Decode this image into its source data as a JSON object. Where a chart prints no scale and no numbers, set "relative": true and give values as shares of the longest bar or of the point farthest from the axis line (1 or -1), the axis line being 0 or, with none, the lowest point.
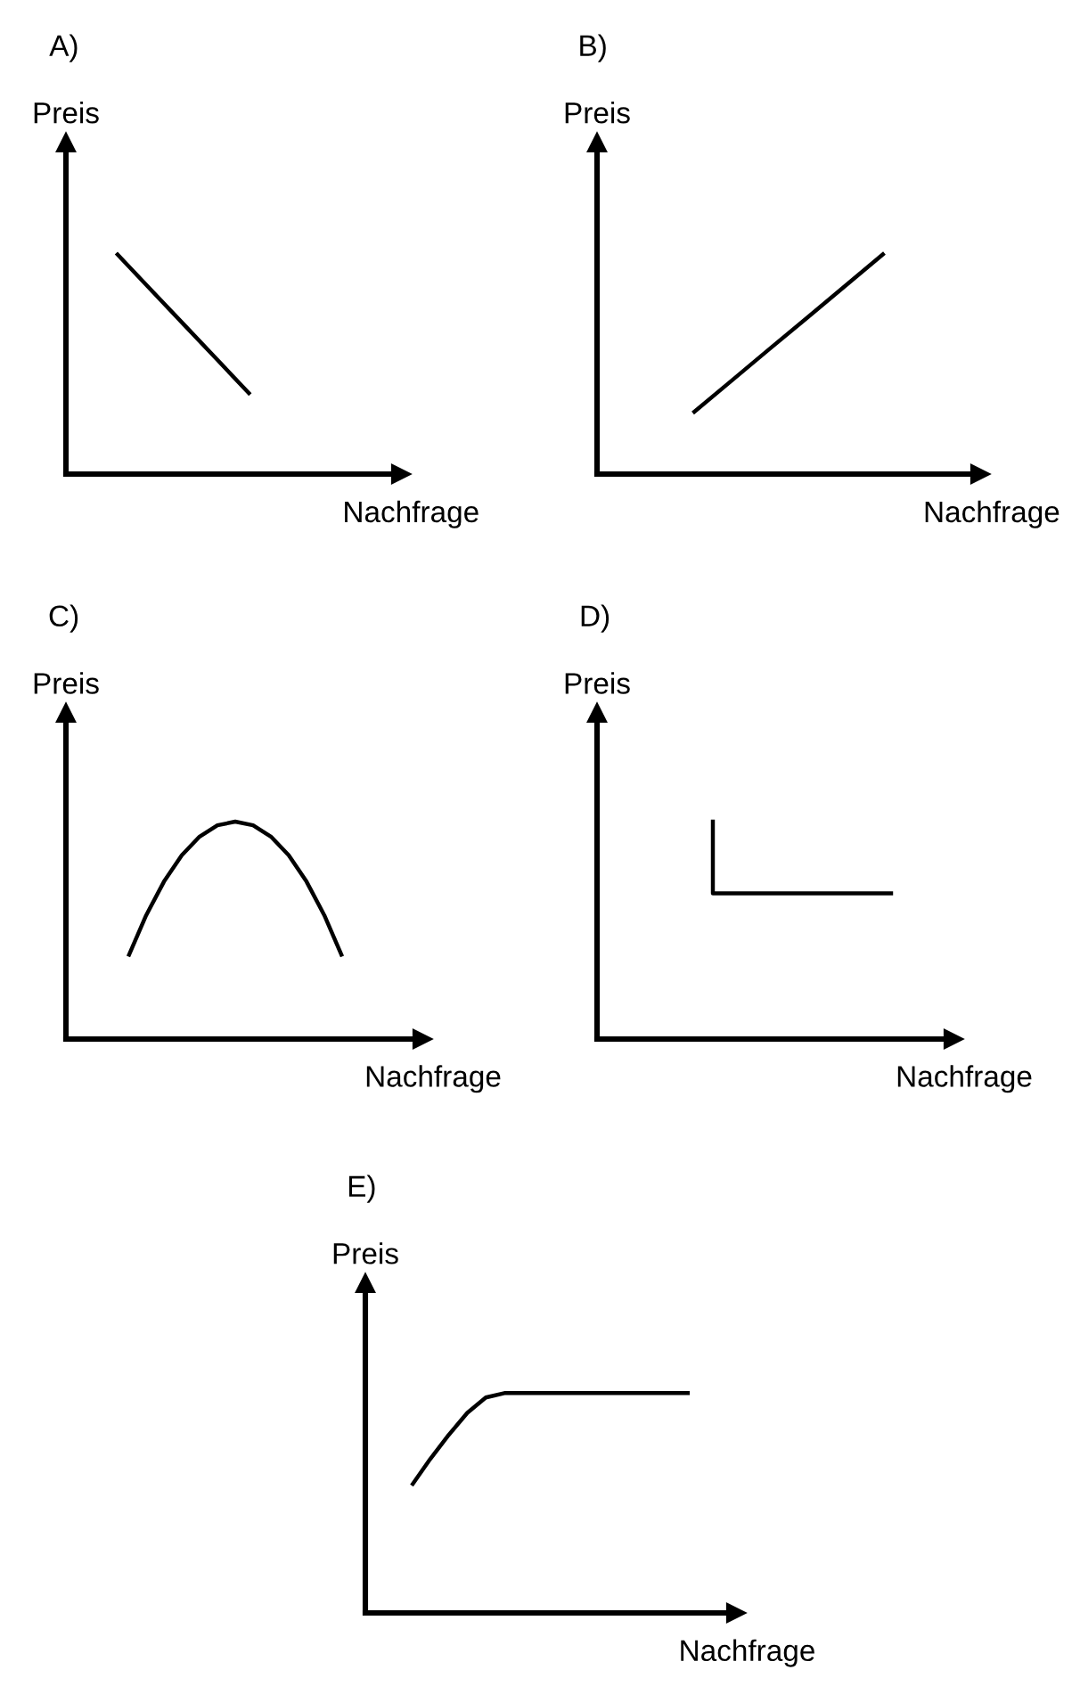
{
  "chart_data": [
    {
      "type": "line",
      "title": "A)",
      "xlabel": "Nachfrage",
      "ylabel": "Preis",
      "relative": true,
      "categories": [
        null,
        null,
        null,
        null,
        null,
        null,
        null,
        null,
        null,
        null
      ],
      "series": [
        {
          "color": "#000000",
          "values": [
            null,
            1,
            0.84,
            0.68,
            0.52,
            0.36,
            null,
            null,
            null,
            null
          ]
        }
      ]
    },
    {
      "type": "line",
      "title": "B)",
      "xlabel": "Nachfrage",
      "ylabel": "Preis",
      "relative": true,
      "categories": [
        null,
        null,
        null,
        null,
        null,
        null,
        null,
        null,
        null,
        null
      ],
      "series": [
        {
          "color": "#000000",
          "values": [
            null,
            null,
            0.276,
            0.421,
            0.566,
            0.71,
            0.855,
            1,
            null,
            null
          ]
        }
      ]
    },
    {
      "type": "line",
      "title": "C)",
      "xlabel": "Nachfrage",
      "ylabel": "Preis",
      "relative": true,
      "categories": [
        null,
        null,
        null,
        null,
        null,
        null,
        null,
        null,
        null,
        null,
        null,
        null,
        null,
        null,
        null,
        null,
        null,
        null,
        null,
        null
      ],
      "series": [
        {
          "color": "#000000",
          "values": [
            null,
            null,
            null,
            0.38,
            0.569,
            0.724,
            0.845,
            0.931,
            0.983,
            1,
            0.983,
            0.931,
            0.845,
            0.724,
            0.569,
            0.38,
            null,
            null,
            null,
            null
          ]
        }
      ]
    },
    {
      "type": "step",
      "title": "D)",
      "xlabel": "Nachfrage",
      "ylabel": "Preis",
      "relative": true,
      "categories": [
        null,
        null,
        null,
        null,
        null,
        null,
        null,
        null,
        null,
        null,
        null,
        null,
        null,
        null,
        null,
        null,
        null,
        null,
        null,
        null
      ],
      "series": [
        {
          "color": "#000000",
          "values": [
            null,
            null,
            null,
            null,
            null,
            null,
            1,
            0.67,
            0.67,
            0.67,
            0.67,
            0.67,
            0.67,
            0.67,
            0.67,
            0.67,
            0.67,
            null,
            null,
            null
          ]
        }
      ]
    },
    {
      "type": "line",
      "title": "E)",
      "xlabel": "Nachfrage",
      "ylabel": "Preis",
      "relative": true,
      "categories": [
        null,
        null,
        null,
        null,
        null,
        null,
        null,
        null,
        null,
        null,
        null,
        null,
        null,
        null,
        null,
        null,
        null,
        null,
        null,
        null
      ],
      "series": [
        {
          "color": "#000000",
          "values": [
            null,
            null,
            0.58,
            0.7,
            0.81,
            0.91,
            0.98,
            1,
            1,
            1,
            1,
            1,
            1,
            1,
            1,
            1,
            1,
            1,
            null,
            null
          ]
        }
      ]
    }
  ]
}
